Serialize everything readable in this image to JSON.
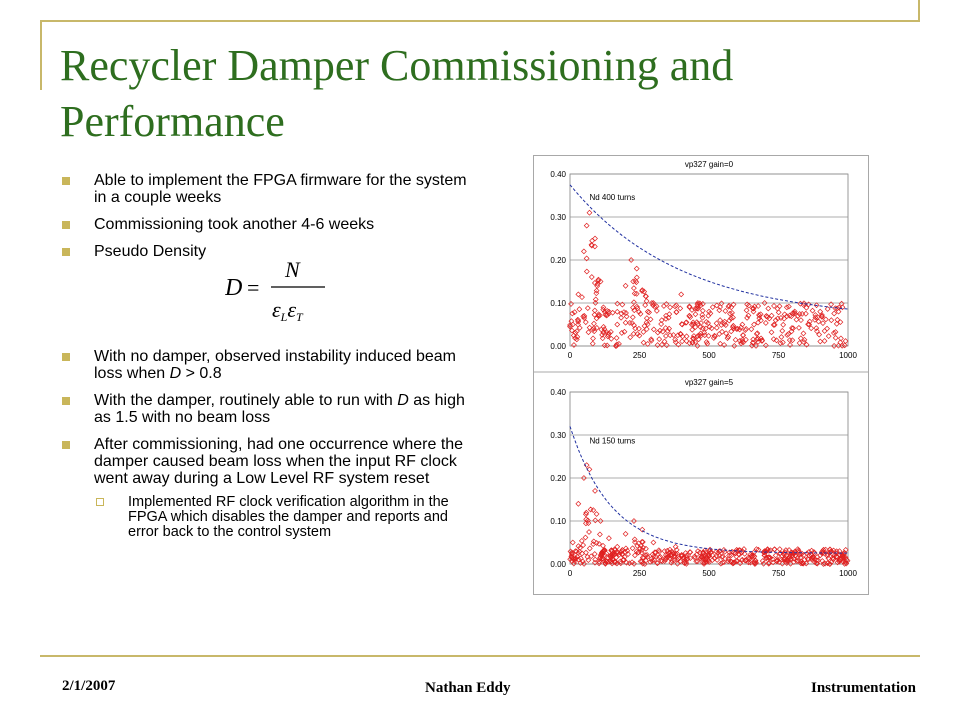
{
  "slide": {
    "title": "Recycler Damper Commissioning and Performance",
    "bullets": [
      "Able to implement the FPGA firmware for the system in a couple weeks",
      "Commissioning took another 4-6 weeks",
      "Pseudo Density"
    ],
    "formula": {
      "lhs": "D",
      "eq": "=",
      "num": "N",
      "den": "εLεT"
    },
    "bullets2_a_pre": "With no damper, observed instability induced beam loss when ",
    "bullets2_a_var": "D",
    "bullets2_a_post": " > 0.8",
    "bullets2_b_pre": "With the damper, routinely able to run with ",
    "bullets2_b_var": "D",
    "bullets2_b_post": " as high as 1.5 with no beam loss",
    "bullets2_c": "After commissioning, had one occurrence where the damper caused beam loss when the input RF clock went away during a Low Level RF system reset",
    "sub_bullet": "Implemented RF clock verification algorithm in the FPGA which disables the damper and reports and error back to the control system"
  },
  "footer": {
    "date": "2/1/2007",
    "name": "Nathan Eddy",
    "section": "Instrumentation"
  },
  "colors": {
    "title": "#2e6e1f",
    "bullet": "#c9b65a",
    "frame": "#c8b86a",
    "scatter": "#e02020",
    "fit": "#2030a0"
  },
  "chart_data": [
    {
      "type": "scatter",
      "title": "vp327 gain=0",
      "annotation": "Nd 400 turns",
      "xlim": [
        0,
        1000
      ],
      "ylim": [
        0,
        0.4
      ],
      "xticks": [
        "0",
        "250",
        "500",
        "750",
        "1000"
      ],
      "yticks": [
        "0.00",
        "0.10",
        "0.20",
        "0.30",
        "0.40"
      ],
      "fit": {
        "type": "exponential",
        "a": 0.375,
        "tau": 400
      },
      "series": [
        {
          "values_desc": "scattered red diamonds"
        }
      ],
      "points_approx": [
        [
          10,
          0.05
        ],
        [
          30,
          0.12
        ],
        [
          50,
          0.22
        ],
        [
          60,
          0.28
        ],
        [
          70,
          0.31
        ],
        [
          90,
          0.25
        ],
        [
          110,
          0.15
        ],
        [
          140,
          0.08
        ],
        [
          170,
          0.05
        ],
        [
          200,
          0.14
        ],
        [
          220,
          0.2
        ],
        [
          240,
          0.18
        ],
        [
          260,
          0.13
        ],
        [
          280,
          0.08
        ],
        [
          300,
          0.1
        ],
        [
          330,
          0.06
        ],
        [
          360,
          0.09
        ],
        [
          400,
          0.12
        ],
        [
          430,
          0.07
        ],
        [
          460,
          0.1
        ],
        [
          500,
          0.08
        ],
        [
          540,
          0.06
        ],
        [
          580,
          0.09
        ],
        [
          620,
          0.05
        ],
        [
          660,
          0.08
        ],
        [
          700,
          0.1
        ],
        [
          740,
          0.06
        ],
        [
          780,
          0.09
        ],
        [
          820,
          0.07
        ],
        [
          860,
          0.05
        ],
        [
          900,
          0.08
        ],
        [
          940,
          0.06
        ],
        [
          980,
          0.09
        ]
      ]
    },
    {
      "type": "scatter",
      "title": "vp327 gain=5",
      "annotation": "Nd 150 turns",
      "xlim": [
        0,
        1000
      ],
      "ylim": [
        0,
        0.4
      ],
      "xticks": [
        "0",
        "250",
        "500",
        "750",
        "1000"
      ],
      "yticks": [
        "0.00",
        "0.10",
        "0.20",
        "0.30",
        "0.40"
      ],
      "fit": {
        "type": "exponential",
        "a": 0.32,
        "tau": 150
      },
      "series": [
        {
          "values_desc": "scattered red diamonds"
        }
      ],
      "points_approx": [
        [
          10,
          0.05
        ],
        [
          30,
          0.14
        ],
        [
          50,
          0.2
        ],
        [
          60,
          0.23
        ],
        [
          70,
          0.22
        ],
        [
          90,
          0.17
        ],
        [
          110,
          0.1
        ],
        [
          140,
          0.06
        ],
        [
          170,
          0.04
        ],
        [
          200,
          0.07
        ],
        [
          230,
          0.1
        ],
        [
          260,
          0.08
        ],
        [
          300,
          0.05
        ],
        [
          340,
          0.03
        ],
        [
          380,
          0.04
        ],
        [
          420,
          0.02
        ],
        [
          460,
          0.03
        ],
        [
          500,
          0.02
        ],
        [
          540,
          0.03
        ],
        [
          580,
          0.02
        ],
        [
          620,
          0.03
        ],
        [
          660,
          0.02
        ],
        [
          700,
          0.03
        ],
        [
          740,
          0.02
        ],
        [
          780,
          0.02
        ],
        [
          820,
          0.03
        ],
        [
          860,
          0.02
        ],
        [
          900,
          0.02
        ],
        [
          940,
          0.03
        ],
        [
          980,
          0.02
        ]
      ]
    }
  ]
}
